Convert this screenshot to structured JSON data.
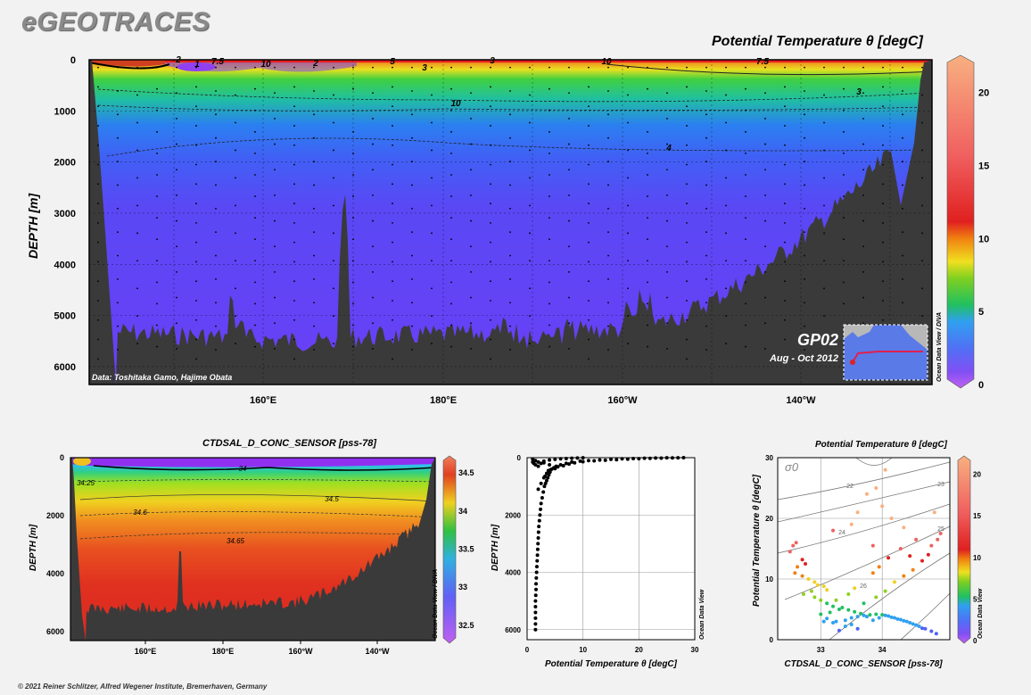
{
  "header": {
    "logo": "eGEOTRACES",
    "footer": "© 2021 Reiner Schlitzer, Alfred Wegener Institute, Bremerhaven, Germany"
  },
  "main_section": {
    "title": "Potential Temperature θ [degC]",
    "ylabel": "DEPTH [m]",
    "credit": "Data: Toshitaka Gamo, Hajime Obata",
    "cruise": "GP02",
    "cruise_dates": "Aug - Oct 2012",
    "odv_label": "Ocean Data View / DIVA"
  },
  "salinity_section": {
    "title": "CTDSAL_D_CONC_SENSOR [pss-78]",
    "ylabel": "DEPTH [m]",
    "odv_label": "Ocean Data View / DIVA"
  },
  "profile": {
    "xlabel": "Potential Temperature θ [degC]",
    "ylabel": "DEPTH [m]",
    "odv_label": "Ocean Data View"
  },
  "ts_plot": {
    "title": "Potential Temperature θ [degC]",
    "xlabel": "CTDSAL_D_CONC_SENSOR [pss-78]",
    "ylabel": "Potential Temperature θ [degC]",
    "sigma_label": "σ0",
    "odv_label": "Ocean Data View"
  },
  "chart_data": [
    {
      "type": "heatmap",
      "id": "main",
      "title": "Potential Temperature θ [degC]",
      "ylabel": "DEPTH [m]",
      "x_ticks": [
        "160°E",
        "180°E",
        "160°W",
        "140°W"
      ],
      "y_ticks": [
        0,
        1000,
        2000,
        3000,
        4000,
        5000,
        6000
      ],
      "ylim": [
        0,
        6350
      ],
      "colorbar": {
        "ticks": [
          0,
          5,
          10,
          15,
          20
        ],
        "range": [
          0,
          22
        ]
      },
      "contour_labels": [
        "1",
        "7.5",
        "10",
        "2",
        "3",
        "5",
        "3",
        "10",
        "7.5",
        "10",
        "3",
        "4",
        "2"
      ],
      "colors": {
        "cold": "#7b3cf0",
        "deep": "#6a40f5",
        "mid": "#3f6df5",
        "warm": "#1ec832",
        "hot": "#e8201e",
        "seafloor": "#3a3a3a"
      }
    },
    {
      "type": "heatmap",
      "id": "salinity",
      "title": "CTDSAL_D_CONC_SENSOR [pss-78]",
      "ylabel": "DEPTH [m]",
      "x_ticks": [
        "160°E",
        "180°E",
        "160°W",
        "140°W"
      ],
      "y_ticks": [
        0,
        2000,
        4000,
        6000
      ],
      "ylim": [
        0,
        6300
      ],
      "colorbar": {
        "ticks": [
          32.5,
          33,
          33.5,
          34,
          34.5
        ],
        "range": [
          32.3,
          34.7
        ]
      },
      "contour_labels": [
        "34",
        "34.25",
        "34.5",
        "34.6",
        "34.65"
      ]
    },
    {
      "type": "scatter",
      "id": "profile",
      "xlabel": "Potential Temperature θ [degC]",
      "ylabel": "DEPTH [m]",
      "x_ticks": [
        0,
        10,
        20,
        30
      ],
      "y_ticks": [
        0,
        2000,
        4000,
        6000
      ],
      "xlim": [
        0,
        30
      ],
      "ylim": [
        0,
        6350
      ],
      "points": [
        [
          1.5,
          6000
        ],
        [
          1.5,
          5800
        ],
        [
          1.5,
          5600
        ],
        [
          1.5,
          5400
        ],
        [
          1.5,
          5200
        ],
        [
          1.5,
          5000
        ],
        [
          1.55,
          4800
        ],
        [
          1.6,
          4600
        ],
        [
          1.6,
          4400
        ],
        [
          1.65,
          4200
        ],
        [
          1.7,
          4000
        ],
        [
          1.75,
          3800
        ],
        [
          1.8,
          3600
        ],
        [
          1.85,
          3400
        ],
        [
          1.9,
          3200
        ],
        [
          1.95,
          3000
        ],
        [
          2.0,
          2800
        ],
        [
          2.05,
          2600
        ],
        [
          2.1,
          2400
        ],
        [
          2.2,
          2200
        ],
        [
          2.3,
          2000
        ],
        [
          2.4,
          1800
        ],
        [
          2.5,
          1600
        ],
        [
          2.7,
          1400
        ],
        [
          2.9,
          1200
        ],
        [
          3.1,
          1000
        ],
        [
          3.3,
          900
        ],
        [
          3.5,
          800
        ],
        [
          3.7,
          700
        ],
        [
          3.9,
          600
        ],
        [
          4.1,
          500
        ],
        [
          4.4,
          400
        ],
        [
          4.8,
          350
        ],
        [
          5.2,
          300
        ],
        [
          6.0,
          250
        ],
        [
          7.0,
          200
        ],
        [
          8.0,
          150
        ],
        [
          9.5,
          120
        ],
        [
          11,
          100
        ],
        [
          13,
          80
        ],
        [
          15,
          60
        ],
        [
          17,
          40
        ],
        [
          19,
          30
        ],
        [
          21,
          20
        ],
        [
          23,
          10
        ],
        [
          25,
          5
        ],
        [
          28,
          0
        ],
        [
          2,
          1100
        ],
        [
          2.5,
          900
        ],
        [
          3,
          700
        ],
        [
          3.2,
          650
        ],
        [
          3.5,
          550
        ],
        [
          3.8,
          450
        ],
        [
          4.2,
          420
        ],
        [
          5,
          380
        ],
        [
          5.5,
          320
        ],
        [
          6.5,
          280
        ],
        [
          7.5,
          220
        ],
        [
          8.5,
          180
        ],
        [
          10,
          140
        ],
        [
          12,
          110
        ],
        [
          14,
          90
        ],
        [
          16,
          70
        ],
        [
          18,
          50
        ],
        [
          20,
          35
        ],
        [
          22,
          25
        ],
        [
          24,
          15
        ],
        [
          26,
          8
        ],
        [
          27,
          3
        ],
        [
          1,
          50
        ],
        [
          1.5,
          100
        ],
        [
          2,
          150
        ],
        [
          2.5,
          200
        ],
        [
          3,
          120
        ],
        [
          4,
          80
        ],
        [
          5,
          60
        ],
        [
          6,
          40
        ],
        [
          7,
          30
        ],
        [
          8,
          20
        ],
        [
          9,
          10
        ],
        [
          10,
          5
        ],
        [
          3,
          180
        ],
        [
          4,
          250
        ],
        [
          2,
          300
        ],
        [
          1.5,
          250
        ],
        [
          1.2,
          200
        ],
        [
          1.0,
          150
        ]
      ]
    },
    {
      "type": "scatter",
      "id": "ts",
      "title": "Potential Temperature θ [degC]",
      "xlabel": "CTDSAL_D_CONC_SENSOR [pss-78]",
      "ylabel": "Potential Temperature θ [degC]",
      "x_ticks": [
        33,
        34
      ],
      "y_ticks": [
        0,
        10,
        20,
        30
      ],
      "xlim": [
        32.3,
        35.1
      ],
      "ylim": [
        0,
        30
      ],
      "sigma_labels": [
        "22",
        "23",
        "24",
        "25",
        "26"
      ],
      "colorbar": {
        "ticks": [
          0,
          5,
          10,
          15,
          20
        ],
        "range": [
          0,
          22
        ]
      },
      "points": [
        [
          32.55,
          15.5
        ],
        [
          32.6,
          16
        ],
        [
          32.5,
          14.5
        ],
        [
          32.7,
          13.2
        ],
        [
          32.75,
          12.5
        ],
        [
          32.62,
          12
        ],
        [
          32.58,
          11
        ],
        [
          32.7,
          10.5
        ],
        [
          32.8,
          10
        ],
        [
          32.9,
          9.5
        ],
        [
          32.95,
          9
        ],
        [
          33.05,
          8.8
        ],
        [
          33.1,
          8.2
        ],
        [
          32.85,
          8
        ],
        [
          32.72,
          7.5
        ],
        [
          32.9,
          7
        ],
        [
          33.0,
          6.5
        ],
        [
          33.1,
          6
        ],
        [
          33.2,
          5.5
        ],
        [
          33.3,
          5
        ],
        [
          33.15,
          4.5
        ],
        [
          33.0,
          4.2
        ],
        [
          33.1,
          3.5
        ],
        [
          33.25,
          3
        ],
        [
          33.4,
          3.2
        ],
        [
          33.5,
          3.6
        ],
        [
          33.6,
          3.8
        ],
        [
          33.7,
          4
        ],
        [
          33.8,
          4.1
        ],
        [
          33.9,
          4.2
        ],
        [
          34.0,
          4.1
        ],
        [
          34.1,
          3.9
        ],
        [
          34.2,
          3.6
        ],
        [
          34.3,
          3.3
        ],
        [
          34.4,
          3
        ],
        [
          34.5,
          2.6
        ],
        [
          34.6,
          2.2
        ],
        [
          34.7,
          1.8
        ],
        [
          34.8,
          1.4
        ],
        [
          34.88,
          1.0
        ],
        [
          34.65,
          1.9
        ],
        [
          34.55,
          2.4
        ],
        [
          34.45,
          2.8
        ],
        [
          34.35,
          3.1
        ],
        [
          34.25,
          3.4
        ],
        [
          34.15,
          3.7
        ],
        [
          34.05,
          4.0
        ],
        [
          33.95,
          3.6
        ],
        [
          33.85,
          3.2
        ],
        [
          33.75,
          3.8
        ],
        [
          33.65,
          4.3
        ],
        [
          33.55,
          4.6
        ],
        [
          33.45,
          4.9
        ],
        [
          33.35,
          5.3
        ],
        [
          33.25,
          6.5
        ],
        [
          33.45,
          7.5
        ],
        [
          33.55,
          8.5
        ],
        [
          33.7,
          6.0
        ],
        [
          33.9,
          7.0
        ],
        [
          34.05,
          8.0
        ],
        [
          34.2,
          9.5
        ],
        [
          34.35,
          10.5
        ],
        [
          34.5,
          11.5
        ],
        [
          34.65,
          13
        ],
        [
          34.75,
          14
        ],
        [
          34.8,
          15.5
        ],
        [
          34.55,
          16.5
        ],
        [
          34.35,
          18.5
        ],
        [
          34.15,
          20
        ],
        [
          34.0,
          22
        ],
        [
          33.9,
          25
        ],
        [
          34.05,
          28
        ],
        [
          33.5,
          19
        ],
        [
          33.2,
          18
        ],
        [
          33.6,
          21
        ],
        [
          33.75,
          24
        ],
        [
          34.1,
          13.5
        ],
        [
          34.3,
          15
        ],
        [
          33.95,
          12
        ],
        [
          33.85,
          11
        ],
        [
          33.4,
          2.2
        ],
        [
          33.3,
          1.5
        ],
        [
          33.6,
          1.8
        ],
        [
          33.5,
          2.5
        ],
        [
          33.2,
          2.8
        ],
        [
          33.05,
          3.0
        ],
        [
          34.95,
          17.5
        ],
        [
          34.9,
          16.5
        ],
        [
          34.85,
          21
        ],
        [
          33.85,
          15.5
        ],
        [
          34.45,
          13.8
        ]
      ]
    }
  ]
}
